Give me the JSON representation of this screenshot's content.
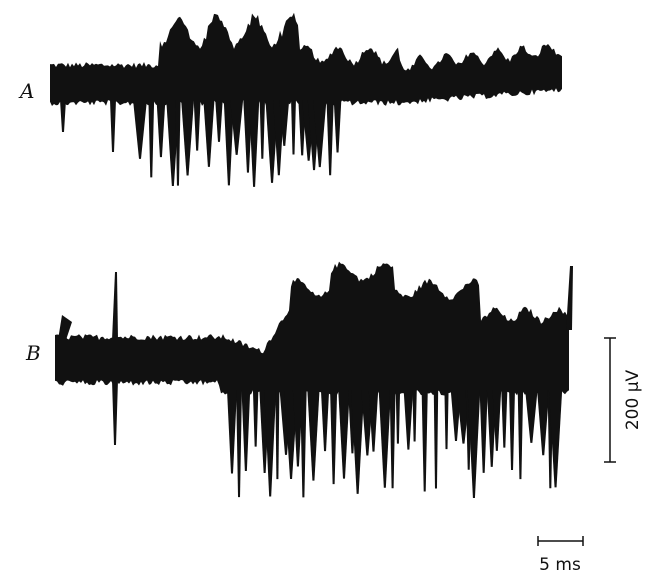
{
  "figure": {
    "panels": [
      {
        "label": "A"
      },
      {
        "label": "B"
      }
    ],
    "scale_bars": {
      "voltage": "200 µV",
      "time": "5 ms"
    }
  }
}
